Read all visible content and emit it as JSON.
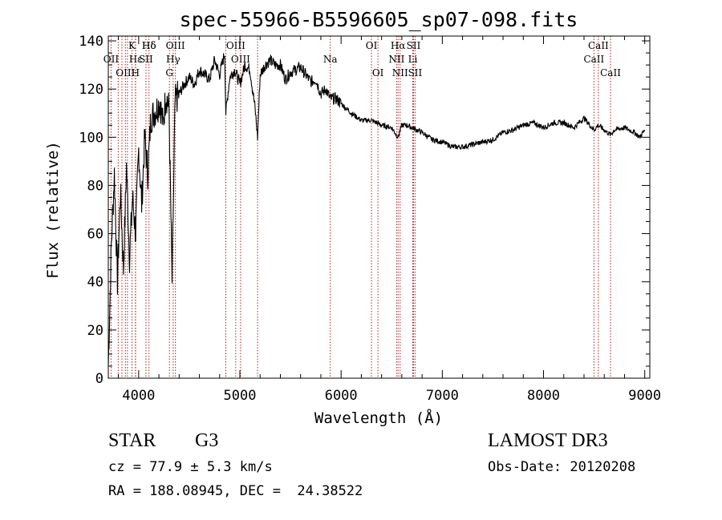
{
  "chart_data": {
    "type": "line",
    "title": "spec-55966-B5596605_sp07-098.fits",
    "xlabel": "Wavelength (Å)",
    "ylabel": "Flux (relative)",
    "xlim": [
      3700,
      9050
    ],
    "ylim": [
      0,
      142
    ],
    "xticks": [
      4000,
      5000,
      6000,
      7000,
      8000,
      9000
    ],
    "yticks": [
      0,
      20,
      40,
      60,
      80,
      100,
      120,
      140
    ],
    "grid": false,
    "series": [
      {
        "x": [
          3700,
          3730,
          3760,
          3790,
          3820,
          3850,
          3880,
          3910,
          3940,
          3970,
          4000,
          4030,
          4060,
          4090,
          4120,
          4150,
          4180,
          4210,
          4240,
          4270,
          4300,
          4330,
          4360,
          4400,
          4450,
          4500,
          4550,
          4600,
          4650,
          4700,
          4750,
          4800,
          4850,
          4861,
          4900,
          4950,
          5000,
          5050,
          5100,
          5150,
          5175,
          5200,
          5250,
          5300,
          5350,
          5400,
          5450,
          5500,
          5550,
          5600,
          5650,
          5700,
          5750,
          5800,
          5850,
          5893,
          5950,
          6000,
          6100,
          6200,
          6300,
          6400,
          6500,
          6563,
          6600,
          6650,
          6700,
          6800,
          6900,
          7000,
          7100,
          7200,
          7300,
          7400,
          7500,
          7600,
          7700,
          7800,
          7900,
          8000,
          8100,
          8200,
          8300,
          8400,
          8498,
          8542,
          8600,
          8662,
          8700,
          8800,
          8900,
          8950,
          9000
        ],
        "y": [
          5,
          55,
          85,
          40,
          78,
          45,
          88,
          50,
          75,
          60,
          95,
          72,
          100,
          85,
          108,
          110,
          112,
          115,
          105,
          118,
          112,
          40,
          115,
          118,
          122,
          125,
          122,
          128,
          126,
          124,
          132,
          126,
          135,
          110,
          125,
          128,
          122,
          130,
          128,
          112,
          100,
          126,
          130,
          132,
          130,
          130,
          124,
          127,
          128,
          129,
          126,
          123,
          124,
          118,
          120,
          116,
          116,
          114,
          110,
          107,
          107,
          105,
          104,
          100,
          105,
          105,
          104,
          102,
          99,
          98,
          96,
          96,
          97,
          98,
          99,
          102,
          103,
          105,
          106,
          104,
          106,
          106,
          104,
          108,
          103,
          105,
          103,
          101,
          103,
          104,
          102,
          100,
          103
        ]
      }
    ],
    "spectral_lines": [
      {
        "label": "Hδ",
        "x": 4102,
        "row": 1
      },
      {
        "label": "K",
        "x": 3934,
        "row": 1
      },
      {
        "label": "Hδ",
        "x": 4102,
        "row": 1
      },
      {
        "label": "OII",
        "x": 3727,
        "row": 2
      },
      {
        "label": "Hε",
        "x": 3970,
        "row": 2
      },
      {
        "label": "SII",
        "x": 4072,
        "row": 2
      },
      {
        "label": "OIII",
        "x": 3869,
        "row": 3
      },
      {
        "label": "Hγ",
        "x": 4341,
        "row": 2
      },
      {
        "label": "H",
        "x": 3968,
        "row": 3
      },
      {
        "label": "OIII",
        "x": 4363,
        "row": 1
      },
      {
        "label": "G",
        "x": 4304,
        "row": 3
      },
      {
        "label": "OIII",
        "x": 4959,
        "row": 1
      },
      {
        "label": "OIII",
        "x": 5007,
        "row": 2
      },
      {
        "label": "Na",
        "x": 5893,
        "row": 2
      },
      {
        "label": "OI",
        "x": 6300,
        "row": 1
      },
      {
        "label": "OI",
        "x": 6364,
        "row": 3
      },
      {
        "label": "Hα",
        "x": 6563,
        "row": 1
      },
      {
        "label": "SII",
        "x": 6716,
        "row": 1
      },
      {
        "label": "NII",
        "x": 6548,
        "row": 2
      },
      {
        "label": "Li",
        "x": 6708,
        "row": 2
      },
      {
        "label": "NII",
        "x": 6583,
        "row": 3
      },
      {
        "label": "SII",
        "x": 6731,
        "row": 3
      },
      {
        "label": "CaII",
        "x": 8542,
        "row": 1
      },
      {
        "label": "CaII",
        "x": 8498,
        "row": 2
      },
      {
        "label": "CaII",
        "x": 8662,
        "row": 3
      }
    ],
    "line_markers": [
      3727,
      3798,
      3835,
      3869,
      3889,
      3934,
      3968,
      3970,
      4072,
      4102,
      4304,
      4341,
      4363,
      4861,
      4959,
      5007,
      5175,
      5893,
      6300,
      6364,
      6548,
      6563,
      6583,
      6708,
      6716,
      6731,
      8498,
      8542,
      8662
    ]
  },
  "info": {
    "class": "STAR",
    "subclass": "G3",
    "survey": "LAMOST DR3",
    "cz": "cz = 77.9 ± 5.3 km/s",
    "obs_date": "Obs-Date: 20120208",
    "radec": "RA = 188.08945, DEC =  24.38522"
  },
  "colors": {
    "spectrum": "#000000",
    "marker": "#b22222"
  }
}
